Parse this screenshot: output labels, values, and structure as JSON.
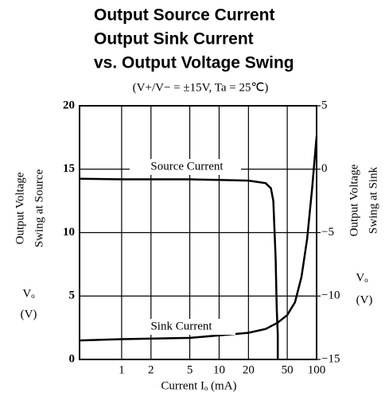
{
  "chart_data": {
    "type": "line",
    "title": [
      "Output Source Current",
      "Output Sink Current",
      "vs. Output Voltage Swing"
    ],
    "subtitle": "(V+/V− = ±15V,  Ta = 25℃)",
    "x_label": "Current Iₒ (mA)",
    "y_label": [
      "Output Voltage",
      "Swing at Source",
      "Vₒ",
      "(V)"
    ],
    "y2_label": [
      "Output Voltage",
      "Swing at Sink",
      "Vₒ",
      "(V)"
    ],
    "log_x": true,
    "xlim": [
      0.37,
      100
    ],
    "xticks": [
      1,
      2,
      5,
      10,
      20,
      50,
      100
    ],
    "ylim": [
      0,
      20
    ],
    "yticks": [
      0,
      5,
      10,
      15,
      20
    ],
    "y2lim": [
      -15,
      5
    ],
    "y2ticks": [
      {
        "value": 5,
        "label": "5"
      },
      {
        "value": 0,
        "label": "0"
      },
      {
        "value": -5,
        "label": "−5"
      },
      {
        "value": -10,
        "label": "−10"
      },
      {
        "value": -15,
        "label": "−15"
      }
    ],
    "grid": true,
    "series": [
      {
        "name": "Source Current",
        "color": "#000",
        "x": [
          0.37,
          1,
          5,
          10,
          20,
          30,
          34,
          36,
          38,
          39,
          40,
          40
        ],
        "values": [
          14.25,
          14.2,
          14.2,
          14.15,
          14.1,
          13.9,
          13.5,
          12.5,
          8,
          4,
          2,
          0
        ]
      },
      {
        "name": "Sink Current",
        "color": "#000",
        "axis": "y2",
        "x": [
          0.37,
          1,
          5,
          10,
          20,
          30,
          40,
          50,
          60,
          70,
          80,
          90,
          100
        ],
        "values": [
          -13.5,
          -13.4,
          -13.3,
          -13.1,
          -12.9,
          -12.6,
          -12.1,
          -11.5,
          -10.5,
          -8.5,
          -5.5,
          -1.5,
          2.6
        ]
      }
    ]
  }
}
